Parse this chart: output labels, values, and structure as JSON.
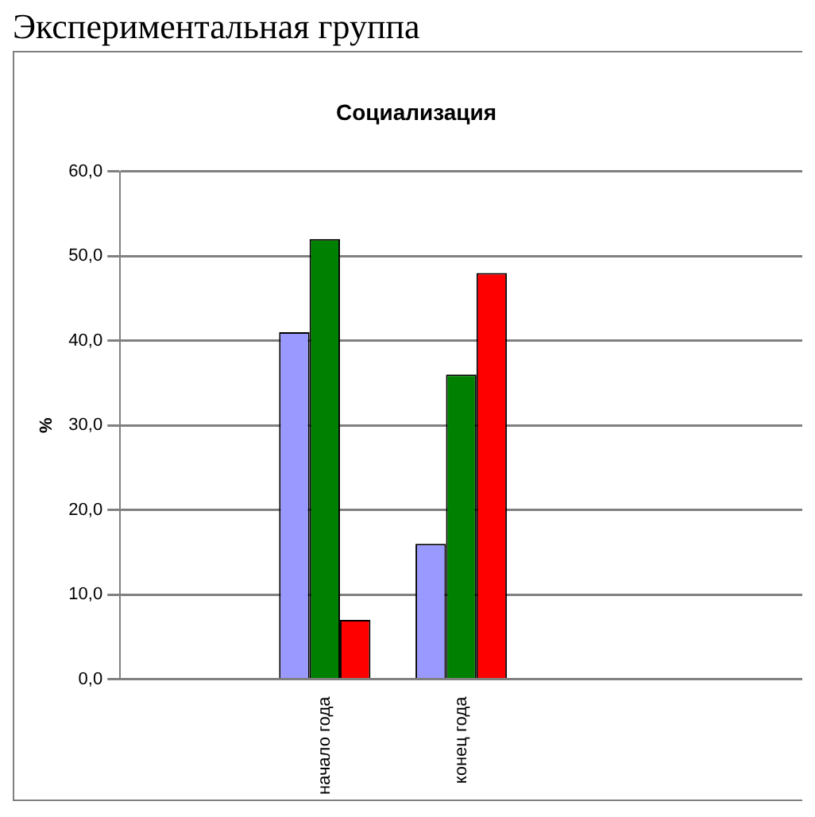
{
  "chart_data": {
    "type": "bar",
    "title": "Социализация",
    "ylabel": "%",
    "annotations": [
      "Экспериментальная группа"
    ],
    "categories": [
      null,
      "начало года",
      "конец года",
      null,
      null
    ],
    "series": [
      {
        "color": "#9999ff",
        "values": [
          null,
          41,
          16,
          null,
          null
        ]
      },
      {
        "color": "#008000",
        "values": [
          null,
          52,
          36,
          null,
          null
        ]
      },
      {
        "color": "#ff0000",
        "values": [
          null,
          7,
          48,
          null,
          null
        ]
      }
    ],
    "ylim": [
      0,
      60
    ],
    "yticks": [
      {
        "value": 0,
        "label": "0,0"
      },
      {
        "value": 10,
        "label": "10,0"
      },
      {
        "value": 20,
        "label": "20,0"
      },
      {
        "value": 30,
        "label": "30,0"
      },
      {
        "value": 40,
        "label": "40,0"
      },
      {
        "value": 50,
        "label": "50,0"
      },
      {
        "value": 60,
        "label": "60,0"
      }
    ],
    "grid": "y",
    "legend": false
  }
}
